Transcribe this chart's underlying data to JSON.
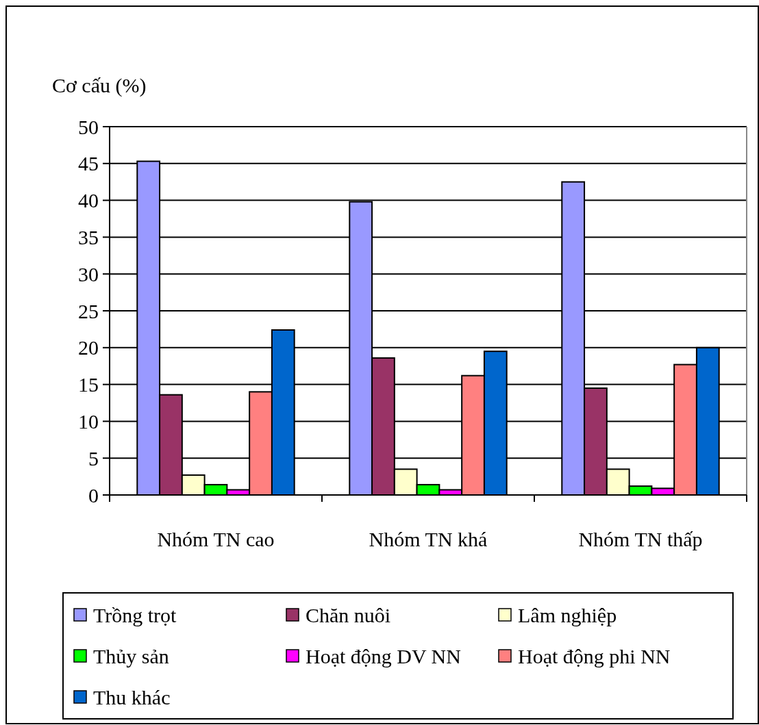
{
  "chart_data": {
    "type": "bar",
    "ylabel": "Cơ cấu (%)",
    "categories": [
      "Nhóm TN cao",
      "Nhóm TN khá",
      "Nhóm TN thấp"
    ],
    "series": [
      {
        "name": "Trồng trọt",
        "color": "#9999ff",
        "values": [
          45.3,
          39.8,
          42.5
        ]
      },
      {
        "name": "Chăn nuôi",
        "color": "#993366",
        "values": [
          13.6,
          18.6,
          14.5
        ]
      },
      {
        "name": "Lâm nghiệp",
        "color": "#ffffcc",
        "values": [
          2.7,
          3.5,
          3.5
        ]
      },
      {
        "name": "Thủy sản",
        "color": "#00ff00",
        "values": [
          1.4,
          1.4,
          1.2
        ]
      },
      {
        "name": "Hoạt động DV NN",
        "color": "#ff00ff",
        "values": [
          0.7,
          0.7,
          0.9
        ]
      },
      {
        "name": "Hoạt động phi NN",
        "color": "#ff8080",
        "values": [
          14.0,
          16.2,
          17.7
        ]
      },
      {
        "name": "Thu khác",
        "color": "#0066cc",
        "values": [
          22.4,
          19.5,
          20.0
        ]
      }
    ],
    "ylim": [
      0,
      50
    ],
    "yticks": [
      0,
      5,
      10,
      15,
      20,
      25,
      30,
      35,
      40,
      45,
      50
    ],
    "grid": "y",
    "legend": "bottom"
  }
}
